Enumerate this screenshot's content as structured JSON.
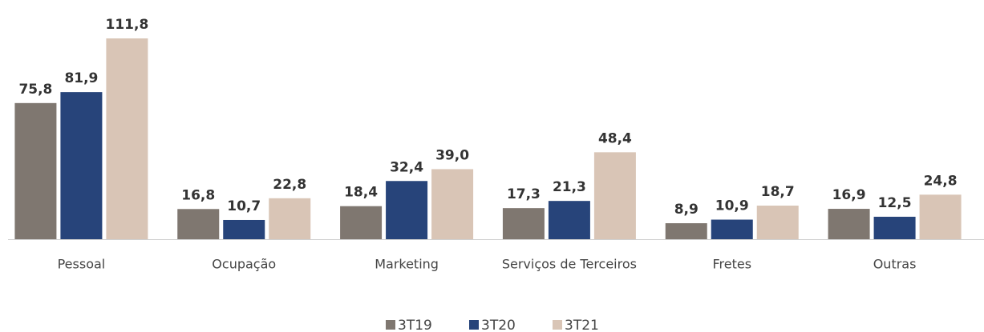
{
  "chart_data": {
    "type": "bar",
    "categories": [
      "Pessoal",
      "Ocupação",
      "Marketing",
      "Serviços de Terceiros",
      "Fretes",
      "Outras"
    ],
    "series": [
      {
        "name": "3T19",
        "color": "#7f7770",
        "values": [
          75.8,
          16.8,
          18.4,
          17.3,
          8.9,
          16.9
        ],
        "value_labels": [
          "75,8",
          "16,8",
          "18,4",
          "17,3",
          "8,9",
          "16,9"
        ]
      },
      {
        "name": "3T20",
        "color": "#27447a",
        "values": [
          81.9,
          10.7,
          32.4,
          21.3,
          10.9,
          12.5
        ],
        "value_labels": [
          "81,9",
          "10,7",
          "32,4",
          "21,3",
          "10,9",
          "12,5"
        ]
      },
      {
        "name": "3T21",
        "color": "#d9c5b6",
        "values": [
          111.8,
          22.8,
          39.0,
          48.4,
          18.7,
          24.8
        ],
        "value_labels": [
          "111,8",
          "22,8",
          "39,0",
          "48,4",
          "18,7",
          "24,8"
        ]
      }
    ],
    "legend": "bottom"
  }
}
